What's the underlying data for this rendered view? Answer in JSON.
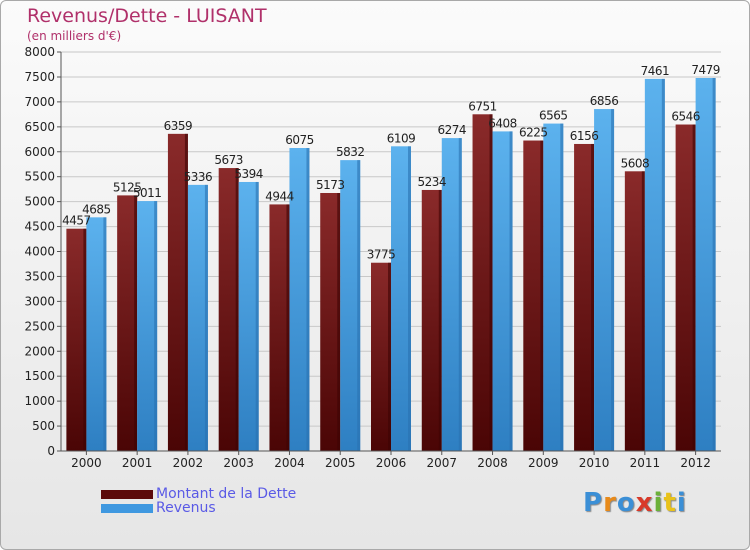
{
  "header": {
    "title": "Revenus/Dette - LUISANT",
    "subtitle": "(en milliers d'€)"
  },
  "colors": {
    "dette": "#6b1414",
    "revenus": "#4ea3e3",
    "title": "#b0306a",
    "legend_text": "#5a5ae6"
  },
  "legend": {
    "items": [
      {
        "label": "Montant de la Dette",
        "color": "#5c0a0a"
      },
      {
        "label": "Revenus",
        "color": "#3f98e0"
      }
    ]
  },
  "logo": {
    "text": "Proxiti"
  },
  "chart_data": {
    "type": "bar",
    "categories": [
      "2000",
      "2001",
      "2002",
      "2003",
      "2004",
      "2005",
      "2006",
      "2007",
      "2008",
      "2009",
      "2010",
      "2011",
      "2012"
    ],
    "series": [
      {
        "name": "Montant de la Dette",
        "values": [
          4457,
          5125,
          6359,
          5673,
          4944,
          5173,
          3775,
          5234,
          6751,
          6225,
          6156,
          5608,
          6546
        ]
      },
      {
        "name": "Revenus",
        "values": [
          4685,
          5011,
          5336,
          5394,
          6075,
          5832,
          6109,
          6274,
          6408,
          6565,
          6856,
          7461,
          7479
        ]
      }
    ],
    "data_labels": [
      [
        "4457",
        "5125",
        "6359",
        "5673",
        "4944",
        "5173",
        "3775",
        "5234",
        "6751",
        "6225",
        "6156",
        "5608",
        "6546"
      ],
      [
        "4685",
        "5011",
        "5336",
        "5394",
        "6075",
        "5832",
        "6109",
        "6274",
        "6408",
        "6565",
        "6856",
        "7461",
        "7479"
      ]
    ],
    "ylim": [
      0,
      8000
    ],
    "yticks": [
      "0",
      "500",
      "1000",
      "1500",
      "2000",
      "2500",
      "3000",
      "3500",
      "4000",
      "4500",
      "5000",
      "5500",
      "6000",
      "6500",
      "7000",
      "7500",
      "8000"
    ],
    "grid": true,
    "legend_position": "bottom-left"
  }
}
